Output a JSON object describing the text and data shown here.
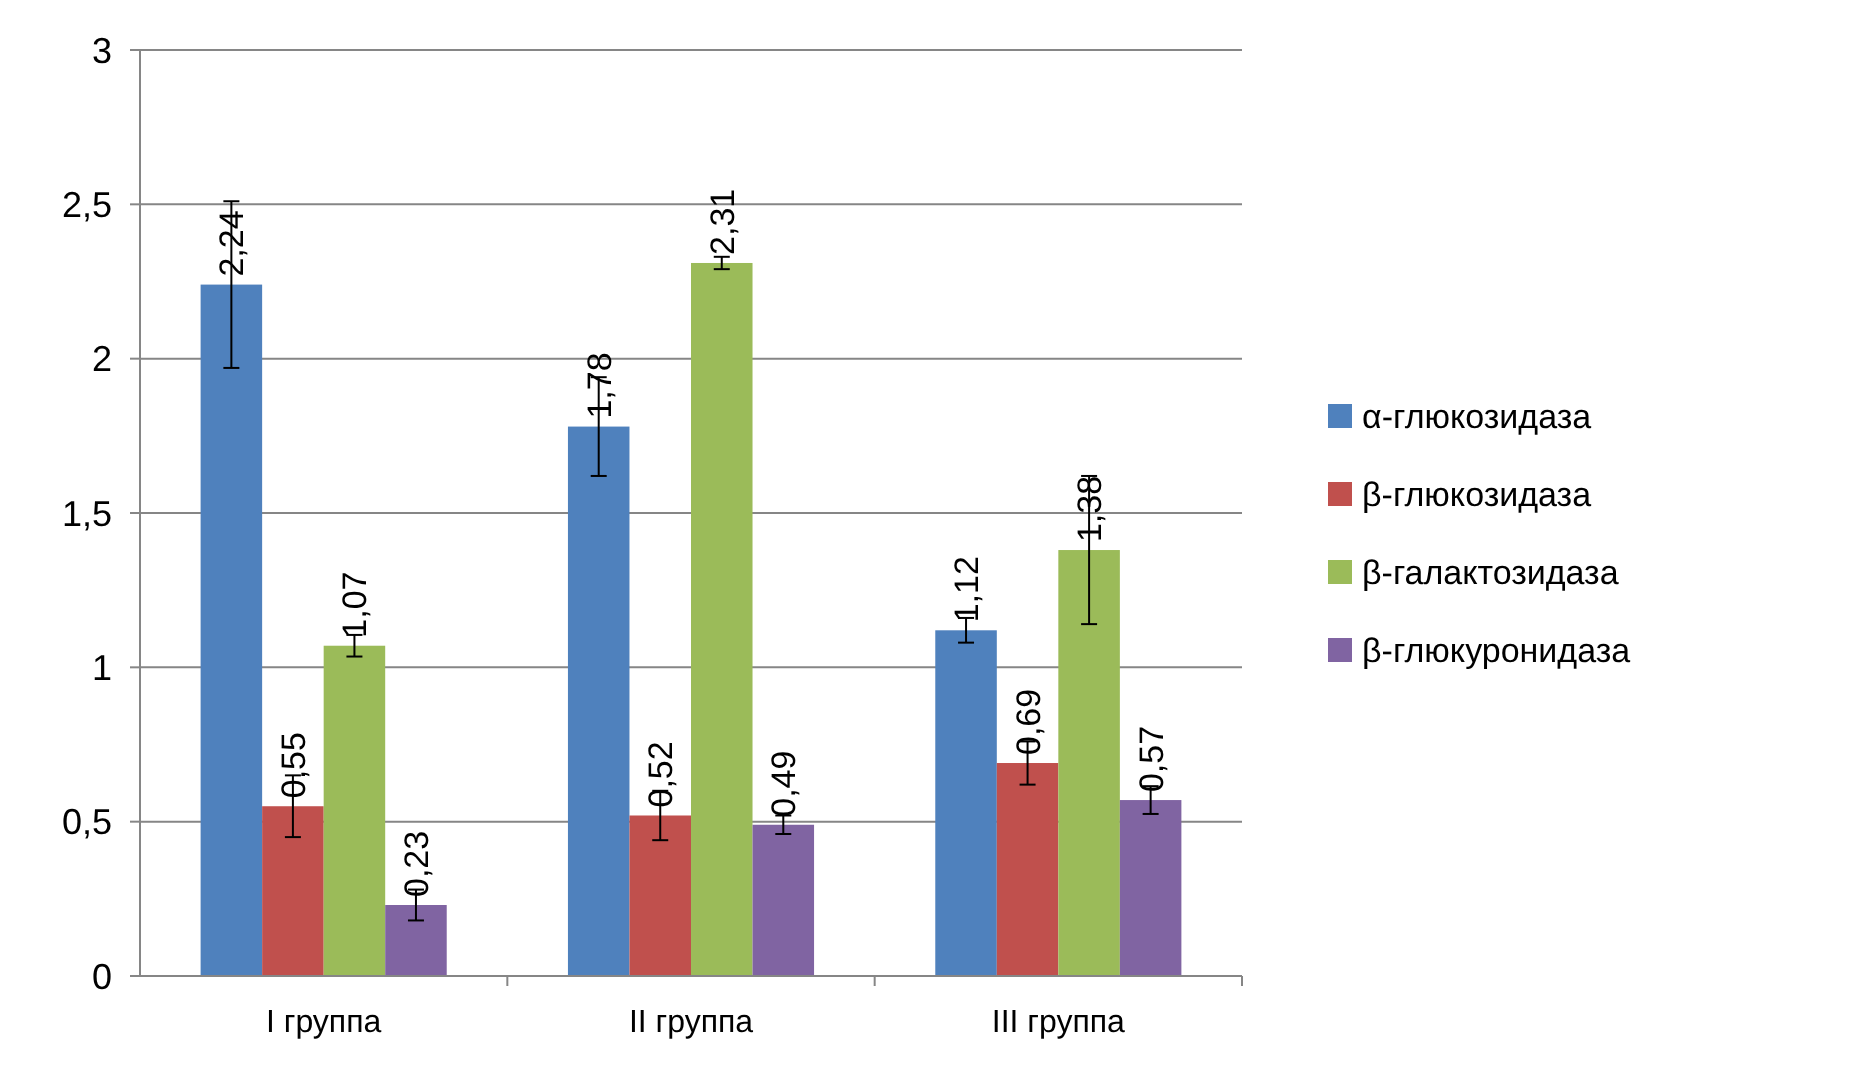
{
  "chart_data": {
    "type": "bar",
    "categories": [
      "I группа",
      "II группа",
      "III группа"
    ],
    "series": [
      {
        "name": "α-глюкозидаза",
        "color": "#4f81bd",
        "values": [
          2.24,
          1.78,
          1.12
        ],
        "value_labels": [
          "2,24",
          "1,78",
          "1,12"
        ],
        "errors": [
          0.27,
          0.16,
          0.04
        ]
      },
      {
        "name": "β-глюкозидаза",
        "color": "#c0504d",
        "values": [
          0.55,
          0.52,
          0.69
        ],
        "value_labels": [
          "0,55",
          "0,52",
          "0,69"
        ],
        "errors": [
          0.1,
          0.08,
          0.07
        ]
      },
      {
        "name": "β-галактозидаза",
        "color": "#9bbb59",
        "values": [
          1.07,
          2.31,
          1.38
        ],
        "value_labels": [
          "1,07",
          "2,31",
          "1,38"
        ],
        "errors": [
          0.035,
          0.02,
          0.24
        ]
      },
      {
        "name": "β-глюкуронидаза",
        "color": "#8064a2",
        "values": [
          0.23,
          0.49,
          0.57
        ],
        "value_labels": [
          "0,23",
          "0,49",
          "0,57"
        ],
        "errors": [
          0.05,
          0.03,
          0.045
        ]
      }
    ],
    "ylim": [
      0,
      3
    ],
    "yticks": [
      0,
      {
        "value": 0.5,
        "label": "0,5"
      },
      1,
      {
        "value": 1.5,
        "label": "1,5"
      },
      2,
      {
        "value": 2.5,
        "label": "2,5"
      },
      3
    ],
    "grid": "y",
    "legend": "right"
  }
}
